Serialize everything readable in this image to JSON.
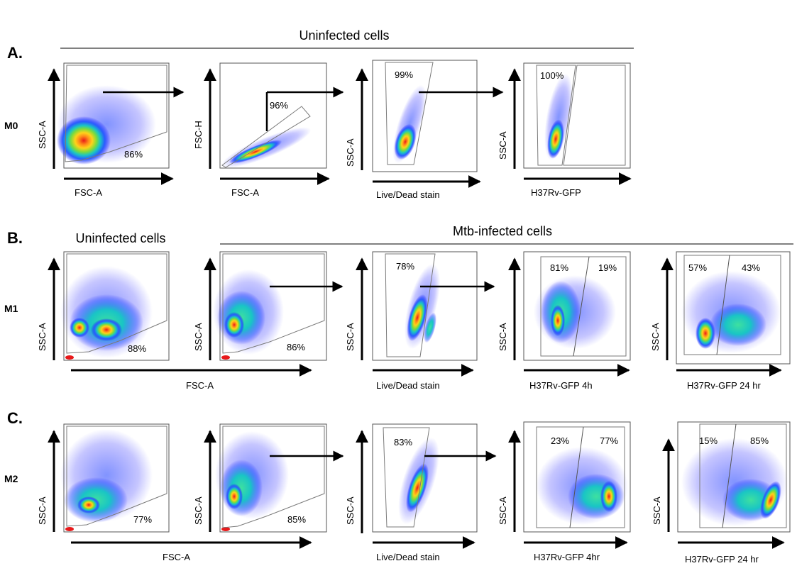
{
  "figure": {
    "panel_letters": [
      "A.",
      "B.",
      "C."
    ],
    "row_labels": [
      "M0",
      "M1",
      "M2"
    ],
    "group_headers": {
      "a_uninfected": "Uninfected cells",
      "b_uninfected": "Uninfected cells",
      "b_infected": "Mtb-infected cells"
    }
  },
  "axis_labels": {
    "ssc_a": "SSC-A",
    "fsc_a": "FSC-A",
    "fsc_h": "FSC-H",
    "live_dead": "Live/Dead stain",
    "gfp": "H37Rv-GFP",
    "gfp_4h": "H37Rv-GFP 4h",
    "gfp_24_hr": "H37Rv-GFP 24 hr",
    "gfp_4hr": "H37Rv-GFP 4hr"
  },
  "gates": {
    "a": [
      "86%",
      "96%",
      "99%",
      "100%"
    ],
    "b": [
      "88%",
      "86%",
      "78%",
      "81%",
      "19%",
      "57%",
      "43%"
    ],
    "c": [
      "77%",
      "85%",
      "83%",
      "23%",
      "77%",
      "15%",
      "85%"
    ]
  },
  "colors": {
    "density_low": "#1a1aff",
    "density_mid": "#19c5c5",
    "density_high": "#ffd21a",
    "density_peak": "#e8191a",
    "gate": "#7a7a7a",
    "frame": "#555555"
  }
}
